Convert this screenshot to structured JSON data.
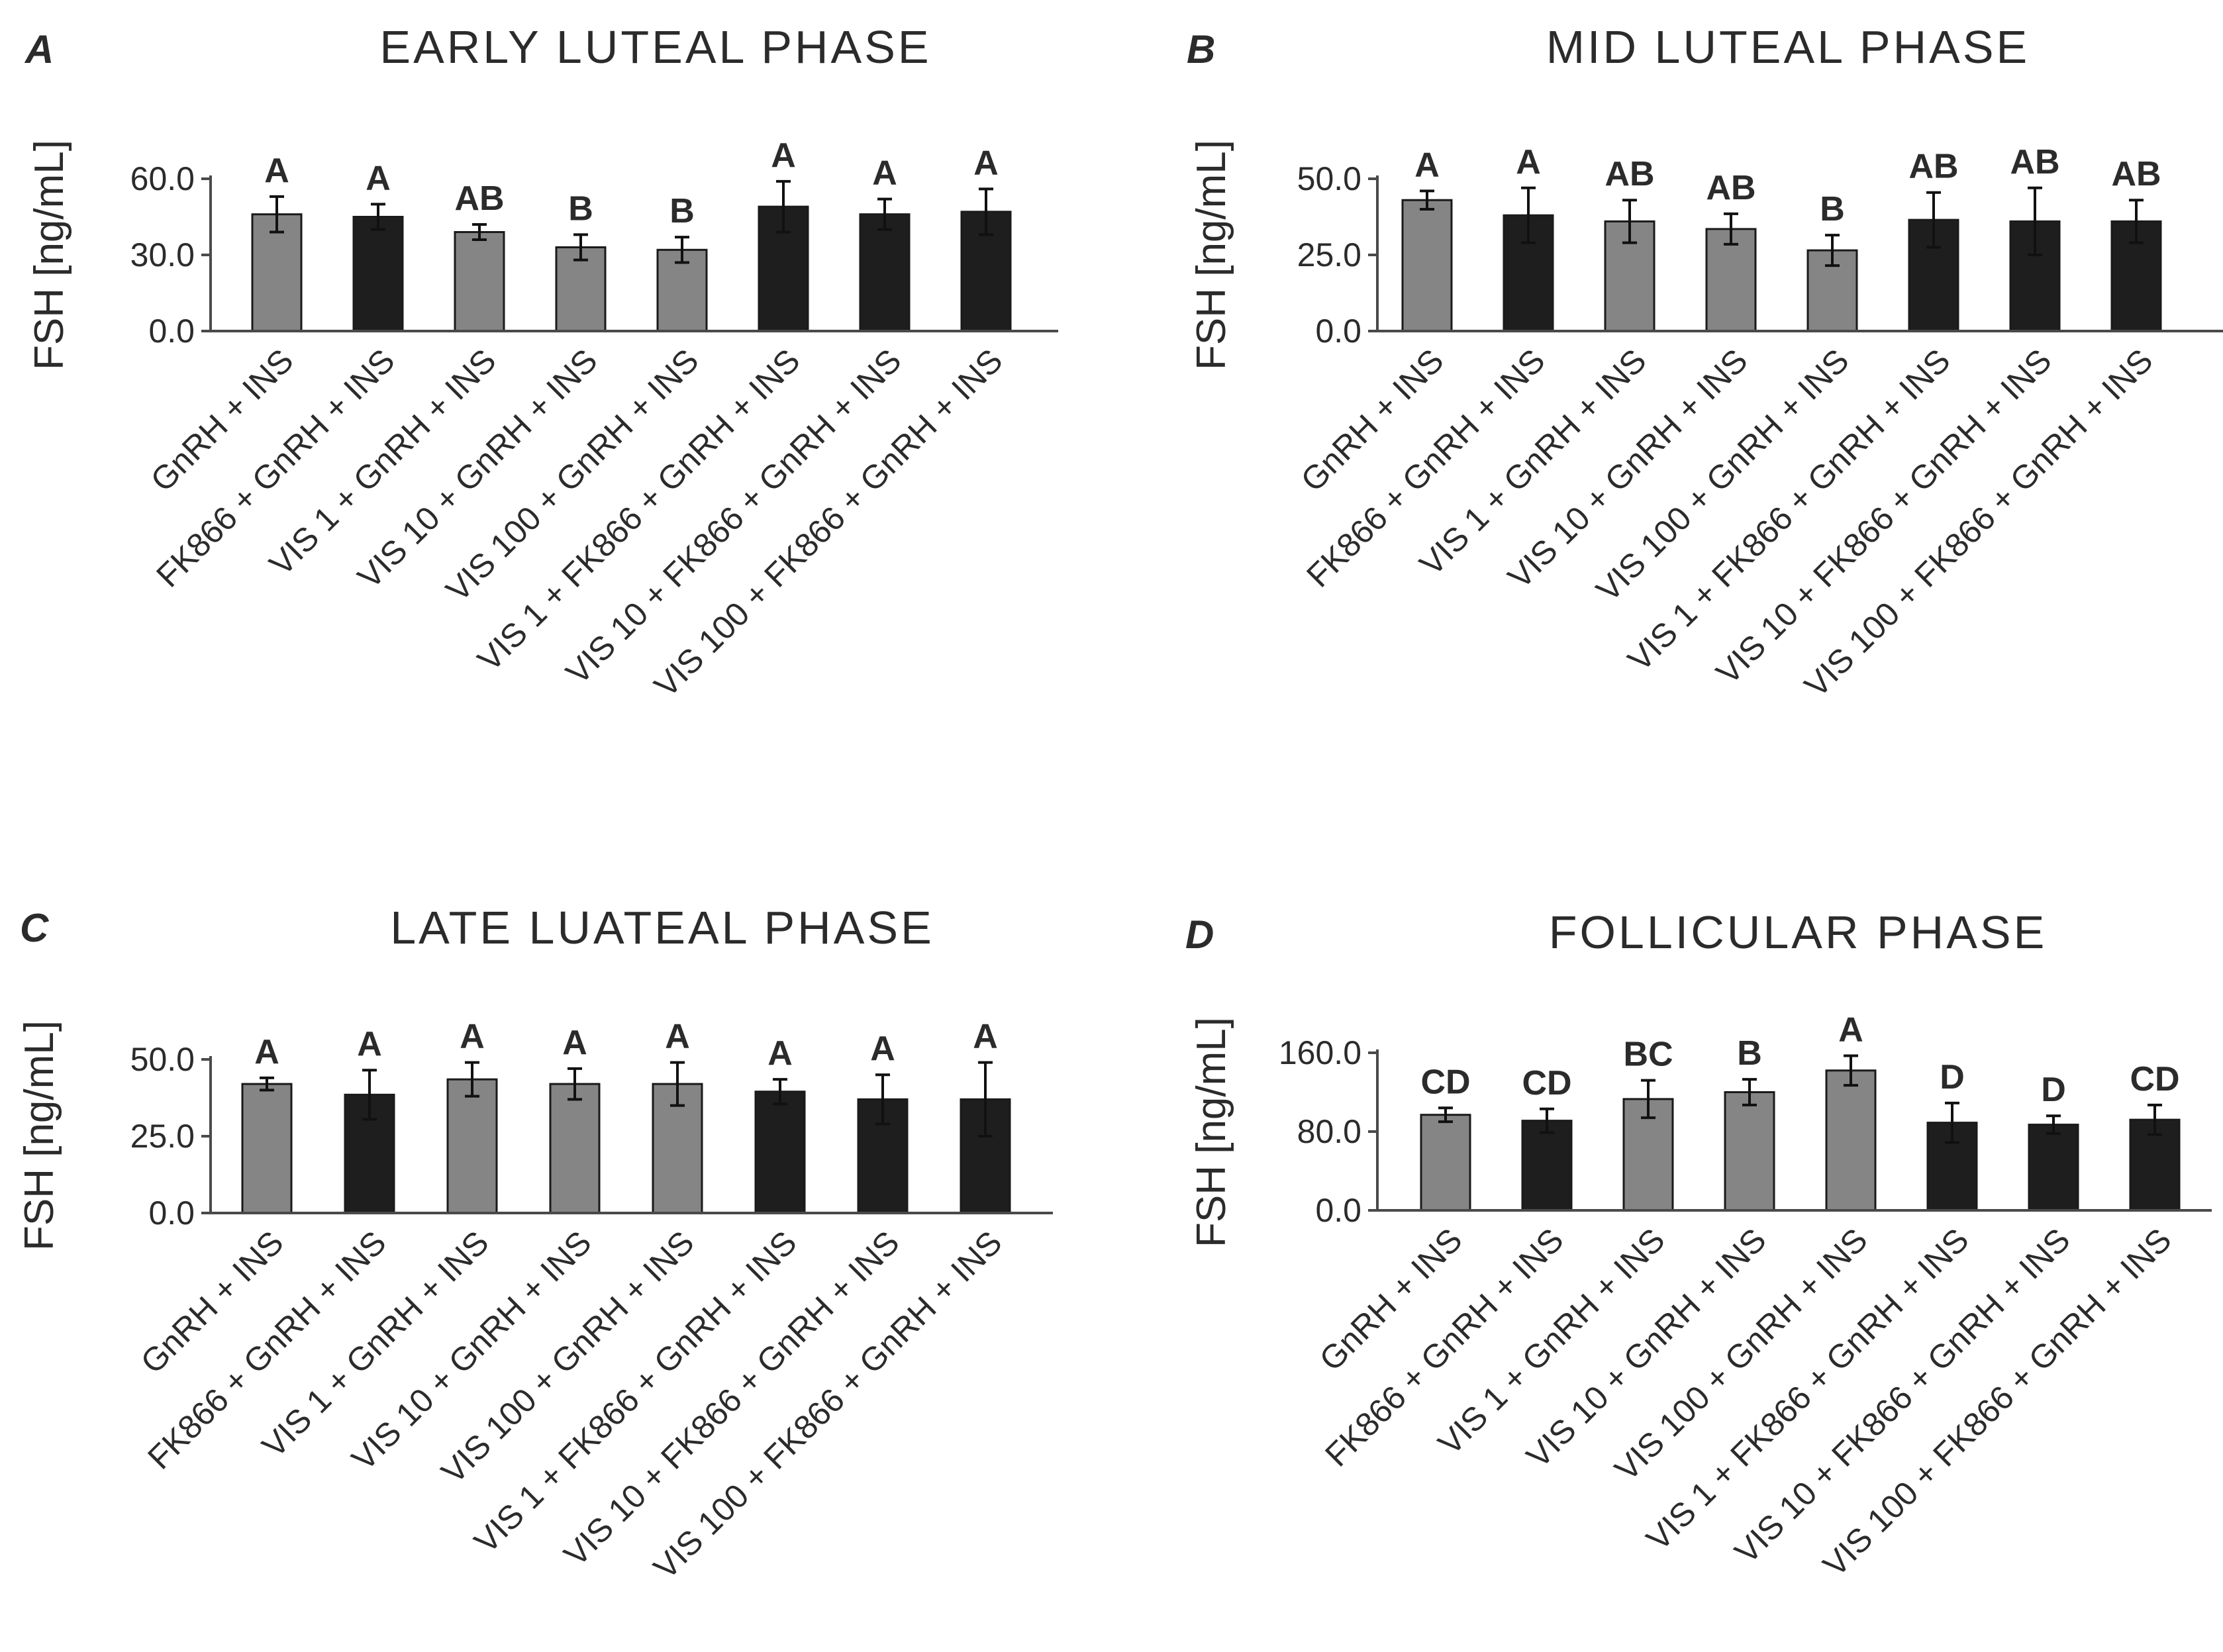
{
  "colors": {
    "gray_bar": "#858585",
    "black_bar": "#1e1e1e",
    "axis": "#4a4a4a",
    "text": "#2b2b2b"
  },
  "chart_data": [
    {
      "type": "bar",
      "panel": "A",
      "title": "EARLY  LUTEAL  PHASE",
      "ylabel": "FSH [ng/mL]",
      "ylim": [
        0,
        60
      ],
      "yticks": [
        0,
        30,
        60
      ],
      "ytick_labels": [
        "0.0",
        "30.0",
        "60.0"
      ],
      "categories": [
        "GnRH + INS",
        "FK866 + GnRH + INS",
        "VIS 1 + GnRH + INS",
        "VIS 10 + GnRH + INS",
        "VIS 100 + GnRH + INS",
        "VIS 1 + FK866 + GnRH + INS",
        "VIS 10 + FK866 + GnRH + INS",
        "VIS 100 + FK866 + GnRH + INS"
      ],
      "values": [
        46,
        45,
        39,
        33,
        32,
        49,
        46,
        47
      ],
      "errors": [
        7,
        5,
        3,
        5,
        5,
        10,
        6,
        9
      ],
      "bar_colors": [
        "gray",
        "black",
        "gray",
        "gray",
        "gray",
        "black",
        "black",
        "black"
      ],
      "significance": [
        "A",
        "A",
        "AB",
        "B",
        "B",
        "A",
        "A",
        "A"
      ]
    },
    {
      "type": "bar",
      "panel": "B",
      "title": "MID  LUTEAL  PHASE",
      "ylabel": "FSH [ng/mL]",
      "ylim": [
        0,
        50
      ],
      "yticks": [
        0,
        25,
        50
      ],
      "ytick_labels": [
        "0.0",
        "25.0",
        "50.0"
      ],
      "categories": [
        "GnRH + INS",
        "FK866 + GnRH + INS",
        "VIS 1 + GnRH + INS",
        "VIS 10 + GnRH + INS",
        "VIS 100 + GnRH + INS",
        "VIS 1 + FK866 + GnRH + INS",
        "VIS 10 + FK866 + GnRH + INS",
        "VIS 100 + FK866 + GnRH + INS"
      ],
      "values": [
        43,
        38,
        36,
        33.5,
        26.5,
        36.5,
        36,
        36
      ],
      "errors": [
        3,
        9,
        7,
        5,
        5,
        9,
        11,
        7
      ],
      "bar_colors": [
        "gray",
        "black",
        "gray",
        "gray",
        "gray",
        "black",
        "black",
        "black"
      ],
      "significance": [
        "A",
        "A",
        "AB",
        "AB",
        "B",
        "AB",
        "AB",
        "AB"
      ]
    },
    {
      "type": "bar",
      "panel": "C",
      "title": "LATE  LUATEAL  PHASE",
      "ylabel": "FSH [ng/mL]",
      "ylim": [
        0,
        50
      ],
      "yticks": [
        0,
        25,
        50
      ],
      "ytick_labels": [
        "0.0",
        "25.0",
        "50.0"
      ],
      "categories": [
        "GnRH + INS",
        "FK866 + GnRH + INS",
        "VIS 1 + GnRH + INS",
        "VIS 10 + GnRH + INS",
        "VIS 100 + GnRH + INS",
        "VIS 1 + FK866 + GnRH + INS",
        "VIS 10 + FK866 + GnRH + INS",
        "VIS 100 + FK866 + GnRH + INS"
      ],
      "values": [
        42,
        38.5,
        43.5,
        42,
        42,
        39.5,
        37,
        37
      ],
      "errors": [
        2,
        8,
        5.5,
        5,
        7,
        4,
        8,
        12
      ],
      "bar_colors": [
        "gray",
        "black",
        "gray",
        "gray",
        "gray",
        "black",
        "black",
        "black"
      ],
      "significance": [
        "A",
        "A",
        "A",
        "A",
        "A",
        "A",
        "A",
        "A"
      ]
    },
    {
      "type": "bar",
      "panel": "D",
      "title": "FOLLICULAR  PHASE",
      "ylabel": "FSH [ng/mL]",
      "ylim": [
        0,
        160
      ],
      "yticks": [
        0,
        80,
        160
      ],
      "ytick_labels": [
        "0.0",
        "80.0",
        "160.0"
      ],
      "categories": [
        "GnRH + INS",
        "FK866 + GnRH + INS",
        "VIS 1 + GnRH + INS",
        "VIS 10 + GnRH + INS",
        "VIS 100 + GnRH + INS",
        "VIS 1 + FK866 + GnRH + INS",
        "VIS 10 + FK866 + GnRH + INS",
        "VIS 100 + FK866 + GnRH + INS"
      ],
      "values": [
        97,
        91,
        113,
        120,
        142,
        89,
        87,
        92
      ],
      "errors": [
        7,
        12,
        19,
        13,
        15,
        20,
        9,
        15
      ],
      "bar_colors": [
        "gray",
        "black",
        "gray",
        "gray",
        "gray",
        "black",
        "black",
        "black"
      ],
      "significance": [
        "CD",
        "CD",
        "BC",
        "B",
        "A",
        "D",
        "D",
        "CD"
      ]
    }
  ]
}
